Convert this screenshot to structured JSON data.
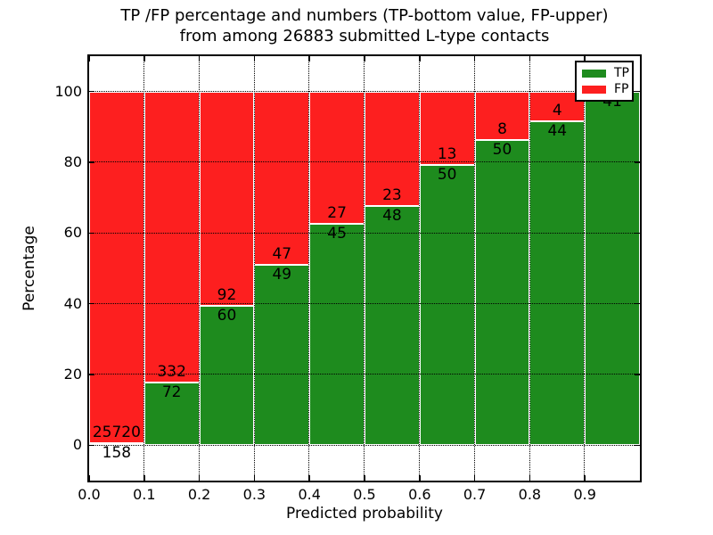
{
  "title": {
    "line1": "TP /FP percentage and numbers (TP-bottom value, FP-upper)",
    "line2": "from among 26883 submitted L-type contacts"
  },
  "axes": {
    "xlabel": "Predicted probability",
    "ylabel": "Percentage",
    "ytick_labels": [
      "0",
      "20",
      "40",
      "60",
      "80",
      "100"
    ],
    "ytick_values": [
      0,
      20,
      40,
      60,
      80,
      100
    ],
    "xtick_labels": [
      "0.0",
      "0.1",
      "0.2",
      "0.3",
      "0.4",
      "0.5",
      "0.6",
      "0.7",
      "0.8",
      "0.9"
    ],
    "xtick_values": [
      0.0,
      0.1,
      0.2,
      0.3,
      0.4,
      0.5,
      0.6,
      0.7,
      0.8,
      0.9
    ],
    "xlim": [
      0,
      1
    ],
    "ylim": [
      -10,
      110
    ],
    "grid": true
  },
  "legend": {
    "position": "upper-right",
    "entries": [
      {
        "label": "TP",
        "color": "#1e8b1e"
      },
      {
        "label": "FP",
        "color": "#fd1f1f"
      }
    ]
  },
  "colors": {
    "tp": "#1e8b1e",
    "fp": "#fd1f1f",
    "grid": "#000000",
    "background": "#ffffff"
  },
  "chart_data": {
    "type": "bar",
    "stacked": true,
    "unit": "percent of bin (TP+FP = 100%)",
    "total_contacts": 26883,
    "bin_width": 0.1,
    "bins": [
      {
        "x0": 0.0,
        "x1": 0.1,
        "tp": 158,
        "fp": 25720,
        "tp_pct": 0.61,
        "tp_label": "158",
        "fp_label": "25720"
      },
      {
        "x0": 0.1,
        "x1": 0.2,
        "tp": 72,
        "fp": 332,
        "tp_pct": 17.82,
        "tp_label": "72",
        "fp_label": "332"
      },
      {
        "x0": 0.2,
        "x1": 0.3,
        "tp": 60,
        "fp": 92,
        "tp_pct": 39.47,
        "tp_label": "60",
        "fp_label": "92"
      },
      {
        "x0": 0.3,
        "x1": 0.4,
        "tp": 49,
        "fp": 47,
        "tp_pct": 51.04,
        "tp_label": "49",
        "fp_label": "47"
      },
      {
        "x0": 0.4,
        "x1": 0.5,
        "tp": 45,
        "fp": 27,
        "tp_pct": 62.5,
        "tp_label": "45",
        "fp_label": "27"
      },
      {
        "x0": 0.5,
        "x1": 0.6,
        "tp": 48,
        "fp": 23,
        "tp_pct": 67.61,
        "tp_label": "48",
        "fp_label": "23"
      },
      {
        "x0": 0.6,
        "x1": 0.7,
        "tp": 50,
        "fp": 13,
        "tp_pct": 79.37,
        "tp_label": "50",
        "fp_label": "13"
      },
      {
        "x0": 0.7,
        "x1": 0.8,
        "tp": 50,
        "fp": 8,
        "tp_pct": 86.21,
        "tp_label": "50",
        "fp_label": "8"
      },
      {
        "x0": 0.8,
        "x1": 0.9,
        "tp": 44,
        "fp": 4,
        "tp_pct": 91.67,
        "tp_label": "44",
        "fp_label": "4"
      },
      {
        "x0": 0.9,
        "x1": 1.0,
        "tp": 41,
        "fp": 0,
        "tp_pct": 100.0,
        "tp_label": "41",
        "fp_label": ""
      }
    ]
  }
}
